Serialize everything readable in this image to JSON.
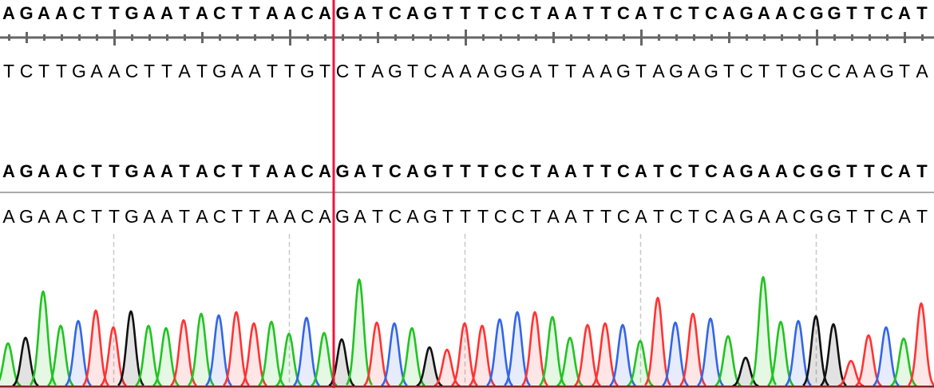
{
  "reference_sequence": "AGAACTTGAATACTTAACAGATCAGTTTCCTAATTCATCTCAGAACGGTTCAT",
  "reference_complement": "TCTTGAACTTATGAATTGTCTAGTCAAAGGATTAAGTAGAGTCTTGCCAAGTA",
  "consensus_sequence": "AGAACTTGAATACTTAACAGATCAGTTTCCTAATTCATCTCAGAACGGTTCAT",
  "read_basecalls": "AGAACTTGAATACTTAACAGATCAGTTTCCTAATTCATCTCAGAACGGTTCAT",
  "cursor_position": 19,
  "colors": {
    "A": "#22c322",
    "C": "#3366e6",
    "G": "#111111",
    "T": "#ff3333",
    "cursor": "#f0143c",
    "ruler": "#666666"
  },
  "chromatogram": {
    "peak_heights": [
      54,
      61,
      119,
      76,
      82,
      95,
      74,
      94,
      76,
      73,
      83,
      91,
      89,
      93,
      79,
      81,
      66,
      86,
      67,
      59,
      134,
      80,
      79,
      73,
      49,
      46,
      79,
      76,
      84,
      93,
      93,
      87,
      61,
      77,
      79,
      77,
      57,
      111,
      80,
      91,
      85,
      63,
      36,
      137,
      81,
      82,
      88,
      78,
      32,
      64,
      74,
      60,
      104
    ]
  }
}
